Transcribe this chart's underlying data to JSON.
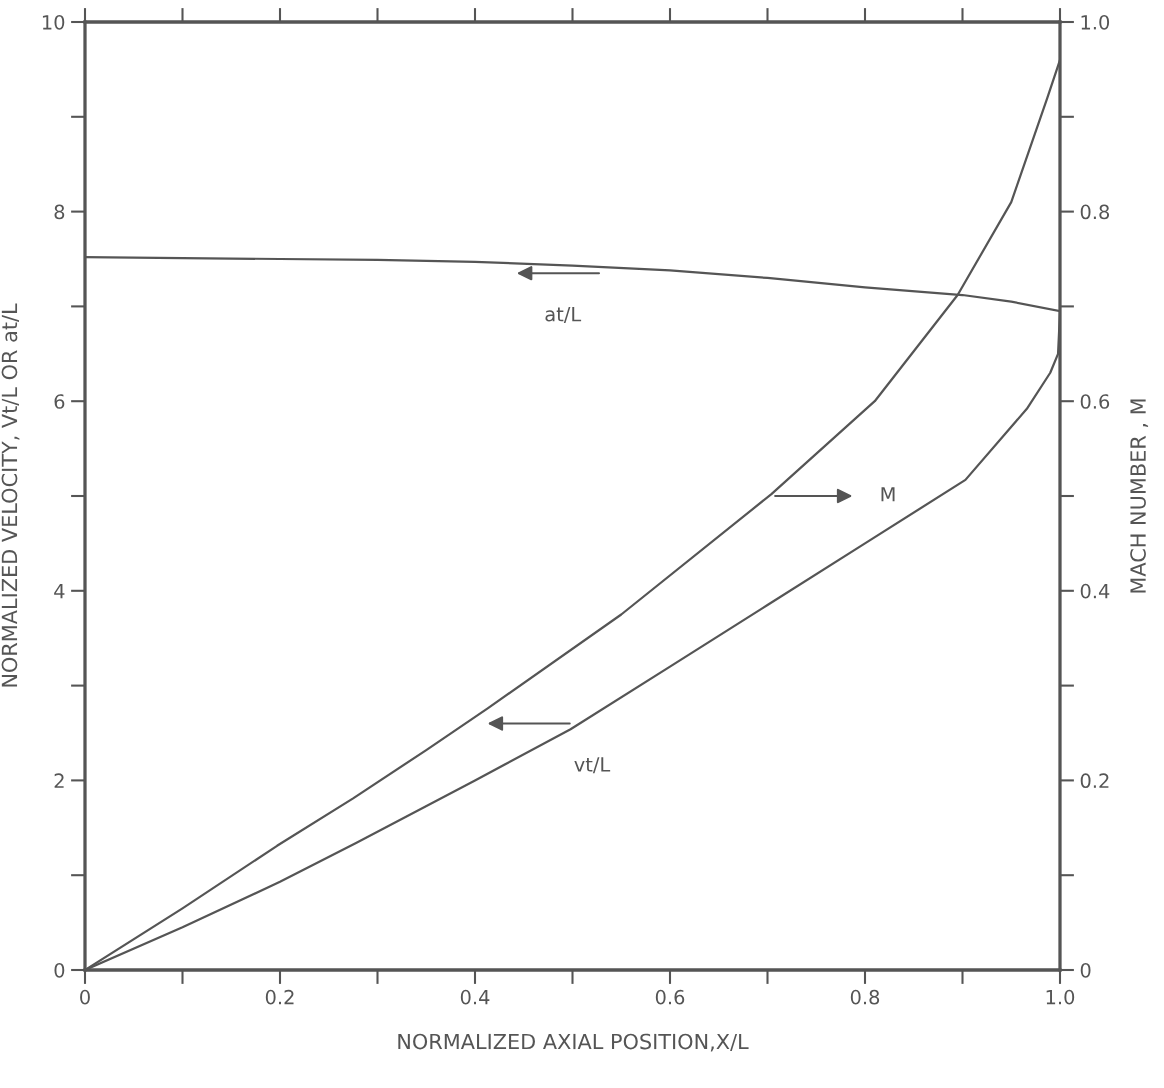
{
  "chart_data": {
    "type": "line",
    "xlabel": "NORMALIZED AXIAL POSITION,X/L",
    "ylabel": "NORMALIZED VELOCITY, Vt/L OR at/L",
    "y2label": "MACH NUMBER , M",
    "xlim": [
      0,
      1.0
    ],
    "xticks": [
      0,
      {
        "value": 0.1,
        "label": null
      },
      0.2,
      {
        "value": 0.3,
        "label": null
      },
      0.4,
      {
        "value": 0.5,
        "label": null
      },
      0.6,
      {
        "value": 0.7,
        "label": null
      },
      0.8,
      {
        "value": 0.9,
        "label": null
      },
      {
        "value": 1.0,
        "label": "1.0"
      }
    ],
    "ylim": [
      0,
      10
    ],
    "yticks": [
      0,
      {
        "value": 1,
        "label": null
      },
      2,
      {
        "value": 3,
        "label": null
      },
      4,
      {
        "value": 5,
        "label": null
      },
      6,
      {
        "value": 7,
        "label": null
      },
      8,
      {
        "value": 9,
        "label": null
      },
      10
    ],
    "y2lim": [
      0,
      1.0
    ],
    "y2ticks": [
      0,
      {
        "value": 0.1,
        "label": null
      },
      0.2,
      {
        "value": 0.3,
        "label": null
      },
      0.4,
      {
        "value": 0.5,
        "label": null
      },
      0.6,
      {
        "value": 0.7,
        "label": null
      },
      0.8,
      {
        "value": 0.9,
        "label": null
      },
      {
        "value": 1.0,
        "label": "1.0"
      }
    ],
    "grid": false,
    "legend": false,
    "marker": "none",
    "line_style": "solid",
    "series": [
      {
        "color": "#555555",
        "x": [
          0,
          0.1,
          0.2,
          0.3,
          0.4,
          0.5,
          0.6,
          0.7,
          0.8,
          0.9,
          0.95,
          1.0
        ],
        "values": [
          7.52,
          7.51,
          7.5,
          7.49,
          7.47,
          7.43,
          7.38,
          7.3,
          7.2,
          7.12,
          7.05,
          6.95
        ]
      },
      {
        "color": "#555555",
        "axis": "y2",
        "x": [
          0,
          0.1,
          0.197,
          0.275,
          0.35,
          0.413,
          0.55,
          0.704,
          0.81,
          0.895,
          0.95,
          0.987,
          1.0
        ],
        "values": [
          0,
          0.065,
          0.131,
          0.181,
          0.232,
          0.276,
          0.375,
          0.502,
          0.6,
          0.712,
          0.81,
          0.92,
          0.96
        ]
      },
      {
        "color": "#555555",
        "x": [
          0,
          0.1,
          0.2,
          0.278,
          0.4,
          0.498,
          0.6,
          0.7,
          0.8,
          0.903,
          0.966,
          0.99,
          0.998,
          1.0
        ],
        "values": [
          0,
          0.45,
          0.93,
          1.34,
          2.0,
          2.54,
          3.2,
          3.85,
          4.5,
          5.17,
          5.92,
          6.3,
          6.5,
          6.94
        ]
      }
    ],
    "annotations": [
      "at/L",
      "M",
      "vt/L"
    ]
  }
}
